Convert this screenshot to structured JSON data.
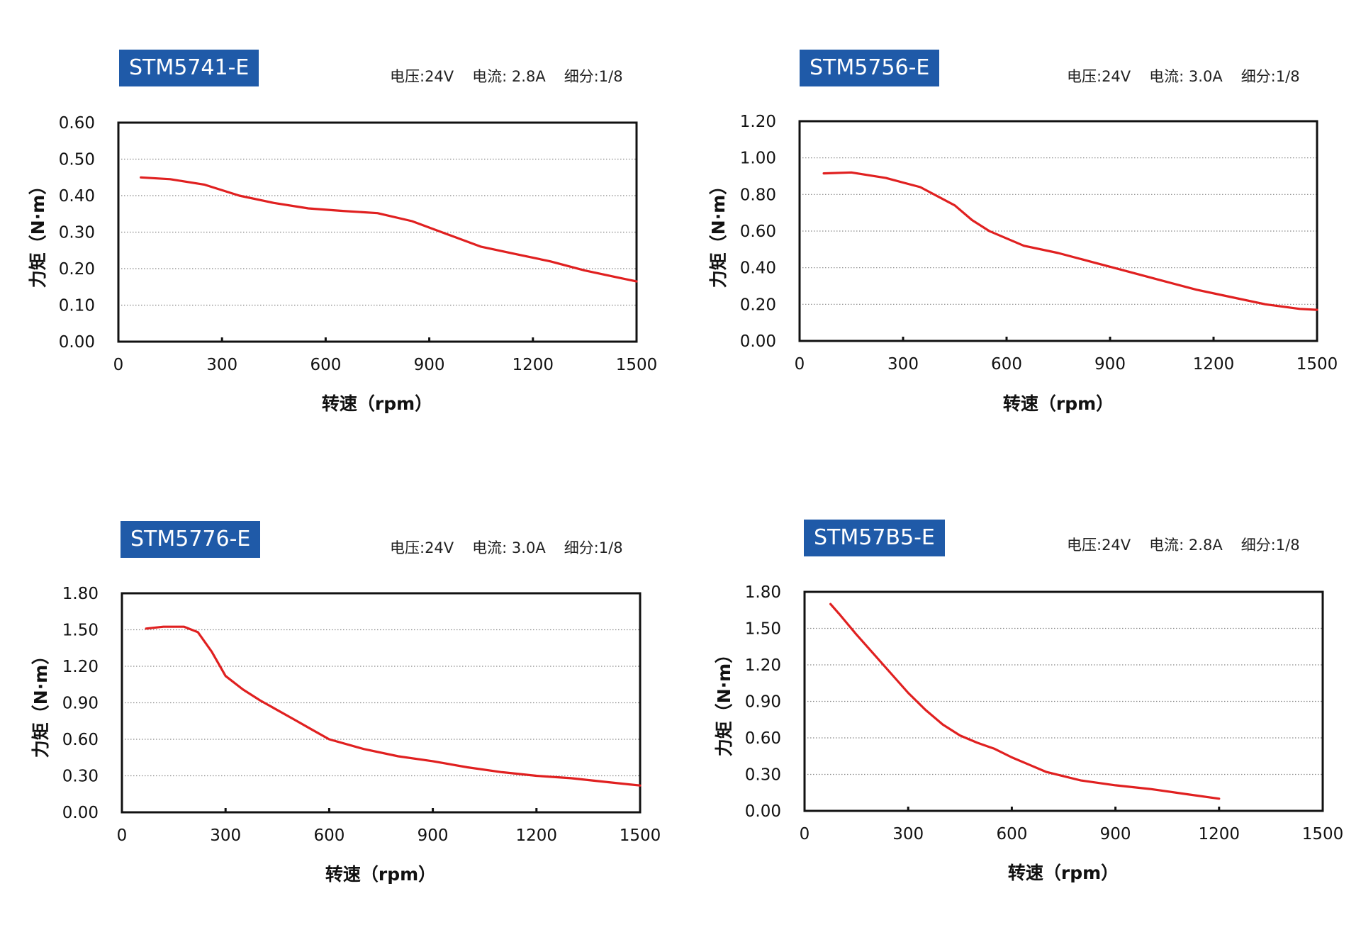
{
  "colors": {
    "badge": "#1f5aa8",
    "curve": "#e02020",
    "frame": "#111111",
    "grid": "#888888"
  },
  "chart_data": [
    {
      "type": "line",
      "title": "STM5741-E",
      "specs": {
        "voltage": "电压:24V",
        "current": "电流: 2.8A",
        "microstep": "细分:1/8"
      },
      "xlabel": "转速（rpm）",
      "ylabel": "力矩（N·m）",
      "xlim": [
        0,
        1500
      ],
      "ylim": [
        0,
        0.6
      ],
      "xticks": [
        "0",
        "300",
        "600",
        "900",
        "1200",
        "1500"
      ],
      "yticks": [
        "0.00",
        "0.10",
        "0.20",
        "0.30",
        "0.40",
        "0.50",
        "0.60"
      ],
      "grid": true,
      "series": [
        {
          "x": [
            65,
            150,
            250,
            350,
            450,
            550,
            650,
            750,
            850,
            950,
            1050,
            1150,
            1250,
            1350,
            1450,
            1500
          ],
          "y": [
            0.45,
            0.445,
            0.43,
            0.4,
            0.38,
            0.365,
            0.358,
            0.352,
            0.33,
            0.295,
            0.26,
            0.24,
            0.22,
            0.195,
            0.175,
            0.165
          ]
        }
      ]
    },
    {
      "type": "line",
      "title": "STM5756-E",
      "specs": {
        "voltage": "电压:24V",
        "current": "电流: 3.0A",
        "microstep": "细分:1/8"
      },
      "xlabel": "转速（rpm）",
      "ylabel": "力矩（N·m）",
      "xlim": [
        0,
        1500
      ],
      "ylim": [
        0,
        1.2
      ],
      "xticks": [
        "0",
        "300",
        "600",
        "900",
        "1200",
        "1500"
      ],
      "yticks": [
        "0.00",
        "0.20",
        "0.40",
        "0.60",
        "0.80",
        "1.00",
        "1.20"
      ],
      "grid": true,
      "series": [
        {
          "x": [
            70,
            150,
            250,
            350,
            450,
            500,
            550,
            650,
            750,
            850,
            950,
            1050,
            1150,
            1250,
            1350,
            1450,
            1500
          ],
          "y": [
            0.915,
            0.92,
            0.89,
            0.84,
            0.74,
            0.66,
            0.6,
            0.52,
            0.48,
            0.43,
            0.38,
            0.33,
            0.28,
            0.24,
            0.2,
            0.175,
            0.17
          ]
        }
      ]
    },
    {
      "type": "line",
      "title": "STM5776-E",
      "specs": {
        "voltage": "电压:24V",
        "current": "电流: 3.0A",
        "microstep": "细分:1/8"
      },
      "xlabel": "转速（rpm）",
      "ylabel": "力矩（N·m）",
      "xlim": [
        0,
        1500
      ],
      "ylim": [
        0,
        1.8
      ],
      "xticks": [
        "0",
        "300",
        "600",
        "900",
        "1200",
        "1500"
      ],
      "yticks": [
        "0.00",
        "0.30",
        "0.60",
        "0.90",
        "1.20",
        "1.50",
        "1.80"
      ],
      "grid": true,
      "series": [
        {
          "x": [
            70,
            120,
            180,
            220,
            260,
            300,
            350,
            400,
            450,
            500,
            550,
            600,
            700,
            800,
            900,
            1000,
            1100,
            1200,
            1300,
            1400,
            1500
          ],
          "y": [
            1.51,
            1.525,
            1.525,
            1.48,
            1.32,
            1.12,
            1.01,
            0.92,
            0.84,
            0.76,
            0.68,
            0.6,
            0.52,
            0.46,
            0.42,
            0.37,
            0.33,
            0.3,
            0.28,
            0.25,
            0.22
          ]
        }
      ]
    },
    {
      "type": "line",
      "title": "STM57B5-E",
      "specs": {
        "voltage": "电压:24V",
        "current": "电流: 2.8A",
        "microstep": "细分:1/8"
      },
      "xlabel": "转速（rpm）",
      "ylabel": "力矩（N·m）",
      "xlim": [
        0,
        1500
      ],
      "ylim": [
        0,
        1.8
      ],
      "xticks": [
        "0",
        "300",
        "600",
        "900",
        "1200",
        "1500"
      ],
      "yticks": [
        "0.00",
        "0.30",
        "0.60",
        "0.90",
        "1.20",
        "1.50",
        "1.80"
      ],
      "grid": true,
      "series": [
        {
          "x": [
            75,
            100,
            150,
            200,
            250,
            300,
            350,
            400,
            450,
            500,
            550,
            600,
            650,
            700,
            800,
            900,
            1000,
            1100,
            1200
          ],
          "y": [
            1.7,
            1.62,
            1.45,
            1.29,
            1.13,
            0.97,
            0.83,
            0.71,
            0.62,
            0.56,
            0.51,
            0.44,
            0.38,
            0.32,
            0.25,
            0.21,
            0.18,
            0.14,
            0.1
          ]
        }
      ]
    }
  ]
}
